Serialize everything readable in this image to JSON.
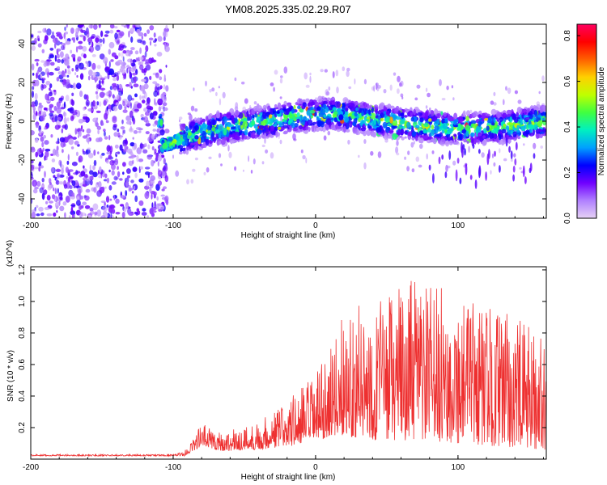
{
  "title": "YM08.2025.335.02.29.R07",
  "chart_data": [
    {
      "type": "heatmap",
      "title": "YM08.2025.335.02.29.R07",
      "xlabel": "Height of straight line (km)",
      "ylabel": "Frequency (Hz)",
      "xlim": [
        -200,
        162
      ],
      "ylim": [
        -50,
        50
      ],
      "x_ticks": [
        -200,
        -100,
        0,
        100
      ],
      "y_ticks": [
        -40,
        -20,
        0,
        20,
        40
      ],
      "colorbar": {
        "label": "Normalized spectral amplitude",
        "range": [
          0.0,
          0.85
        ],
        "ticks": [
          0.0,
          0.2,
          0.4,
          0.6,
          0.8
        ],
        "colors": [
          "#e6d2f5",
          "#b080ff",
          "#7000ff",
          "#0000ff",
          "#00a0ff",
          "#00f0c0",
          "#40ff40",
          "#c0ff00",
          "#ffd000",
          "#ff6000",
          "#ff0000",
          "#ff0060"
        ]
      },
      "signal_band_center_hz": [
        {
          "x": -108,
          "f": -13
        },
        {
          "x": -90,
          "f": -8
        },
        {
          "x": -70,
          "f": -4
        },
        {
          "x": -40,
          "f": -1
        },
        {
          "x": -10,
          "f": 3
        },
        {
          "x": 10,
          "f": 4
        },
        {
          "x": 40,
          "f": 1
        },
        {
          "x": 70,
          "f": -2
        },
        {
          "x": 100,
          "f": -4
        },
        {
          "x": 130,
          "f": -3
        },
        {
          "x": 162,
          "f": 0
        }
      ]
    },
    {
      "type": "line",
      "xlabel": "Height of straight line (km)",
      "ylabel": "SNR (10 * v/v)",
      "y_scale_label": "(x10^4)",
      "xlim": [
        -200,
        162
      ],
      "ylim": [
        0,
        1.22
      ],
      "x_ticks": [
        -200,
        -100,
        0,
        100
      ],
      "y_ticks": [
        0.2,
        0.4,
        0.6,
        0.8,
        1.0,
        1.2
      ],
      "series_color": "#ee3030",
      "envelope": [
        {
          "x": -200,
          "base": 0.02,
          "peak": 0.03
        },
        {
          "x": -100,
          "base": 0.02,
          "peak": 0.03
        },
        {
          "x": -92,
          "base": 0.02,
          "peak": 0.05
        },
        {
          "x": -80,
          "base": 0.08,
          "peak": 0.23
        },
        {
          "x": -65,
          "base": 0.05,
          "peak": 0.17
        },
        {
          "x": -40,
          "base": 0.06,
          "peak": 0.24
        },
        {
          "x": -20,
          "base": 0.08,
          "peak": 0.38
        },
        {
          "x": 0,
          "base": 0.1,
          "peak": 0.55
        },
        {
          "x": 10,
          "base": 0.15,
          "peak": 0.68
        },
        {
          "x": 20,
          "base": 0.15,
          "peak": 0.95
        },
        {
          "x": 40,
          "base": 0.12,
          "peak": 1.0
        },
        {
          "x": 70,
          "base": 0.12,
          "peak": 1.15
        },
        {
          "x": 100,
          "base": 0.1,
          "peak": 1.05
        },
        {
          "x": 130,
          "base": 0.08,
          "peak": 0.95
        },
        {
          "x": 162,
          "base": 0.06,
          "peak": 0.8
        }
      ]
    }
  ]
}
